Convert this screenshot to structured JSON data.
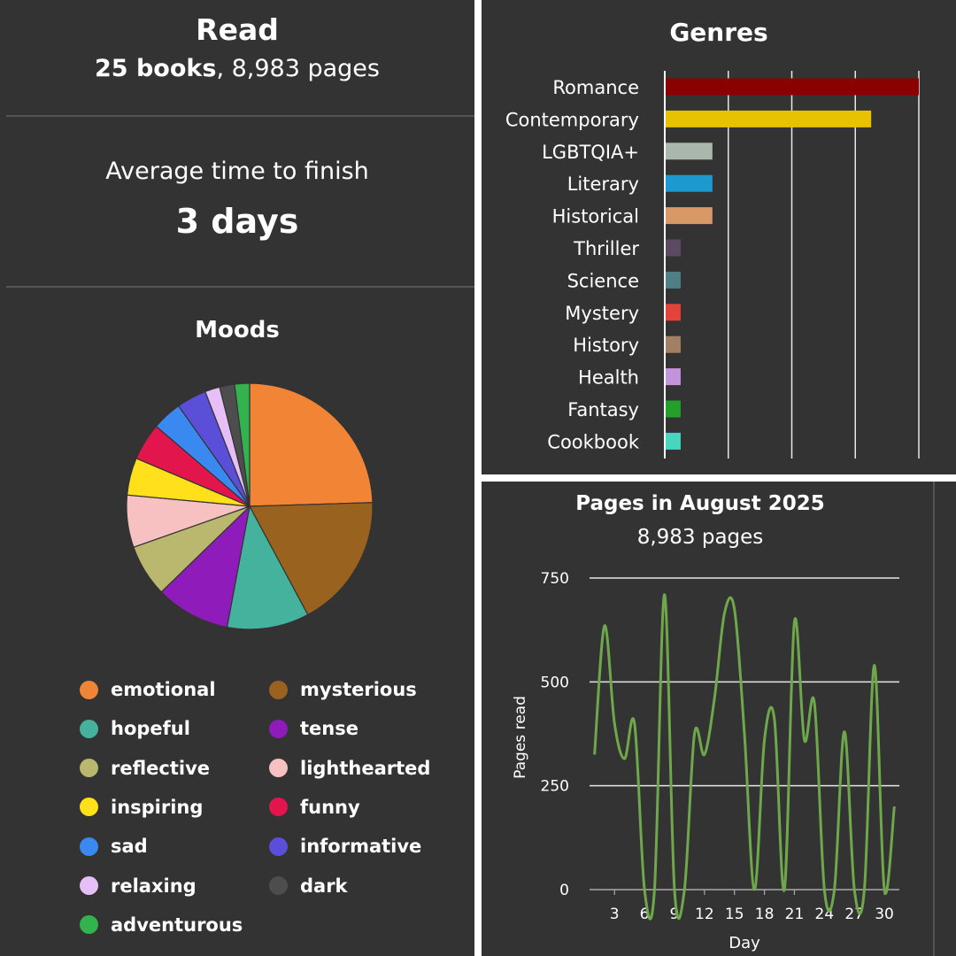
{
  "read": {
    "title": "Read",
    "books": "25 books",
    "pages_suffix": ", 8,983 pages"
  },
  "average": {
    "label": "Average time to finish",
    "value": "3 days"
  },
  "moods": {
    "title": "Moods"
  },
  "genres": {
    "title": "Genres"
  },
  "pages": {
    "title": "Pages in August 2025",
    "subtitle": "8,983 pages"
  },
  "chart_data": [
    {
      "type": "pie",
      "title": "Moods",
      "legend_placement": "bottom",
      "slices": [
        {
          "label": "emotional",
          "value": 25,
          "color": "#F28535"
        },
        {
          "label": "mysterious",
          "value": 18,
          "color": "#99631F"
        },
        {
          "label": "hopeful",
          "value": 11,
          "color": "#45B29D"
        },
        {
          "label": "tense",
          "value": 10,
          "color": "#8E1BBA"
        },
        {
          "label": "reflective",
          "value": 7,
          "color": "#BAB86E"
        },
        {
          "label": "lighthearted",
          "value": 7,
          "color": "#F8C1C1"
        },
        {
          "label": "inspiring",
          "value": 5,
          "color": "#FFE01B"
        },
        {
          "label": "funny",
          "value": 5,
          "color": "#E3154D"
        },
        {
          "label": "sad",
          "value": 4,
          "color": "#3A89F0"
        },
        {
          "label": "informative",
          "value": 4,
          "color": "#5B4ED8"
        },
        {
          "label": "relaxing",
          "value": 2,
          "color": "#E6BFF7"
        },
        {
          "label": "dark",
          "value": 2,
          "color": "#4D4D4D"
        },
        {
          "label": "adventurous",
          "value": 2,
          "color": "#33B34D"
        }
      ]
    },
    {
      "type": "bar",
      "orientation": "horizontal",
      "title": "Genres",
      "categories": [
        "Romance",
        "Contemporary",
        "LGBTQIA+",
        "Literary",
        "Historical",
        "Thriller",
        "Science",
        "Mystery",
        "History",
        "Health",
        "Fantasy",
        "Cookbook"
      ],
      "values": [
        16,
        13,
        3,
        3,
        3,
        1,
        1,
        1,
        1,
        1,
        1,
        1
      ],
      "colors": [
        "#8B0000",
        "#E6C200",
        "#A9B8AA",
        "#1C99CF",
        "#D99868",
        "#5C4A63",
        "#4F7F86",
        "#E3433B",
        "#A38064",
        "#C393DB",
        "#22A02A",
        "#47D6C0"
      ],
      "xlim": [
        0,
        16
      ],
      "grid": true
    },
    {
      "type": "line",
      "title": "Pages in August 2025",
      "xlabel": "Day",
      "ylabel": "Pages read",
      "ylim": [
        0,
        750
      ],
      "xlim": [
        1,
        31
      ],
      "yticks": [
        0,
        250,
        500,
        750
      ],
      "xticks": [
        3,
        6,
        9,
        12,
        15,
        18,
        21,
        24,
        27,
        30
      ],
      "grid": true,
      "color": "#6EA84A",
      "series": [
        {
          "x": [
            1,
            2,
            3,
            4,
            5,
            6,
            7,
            8,
            9,
            10,
            11,
            12,
            13,
            14,
            15,
            16,
            17,
            18,
            19,
            20,
            21,
            22,
            23,
            24,
            25,
            26,
            27,
            28,
            29,
            30,
            31
          ],
          "values": [
            325,
            635,
            400,
            315,
            400,
            0,
            0,
            710,
            0,
            0,
            375,
            325,
            460,
            665,
            675,
            375,
            0,
            360,
            410,
            0,
            645,
            360,
            450,
            0,
            0,
            380,
            0,
            0,
            540,
            0,
            200
          ]
        }
      ]
    }
  ]
}
